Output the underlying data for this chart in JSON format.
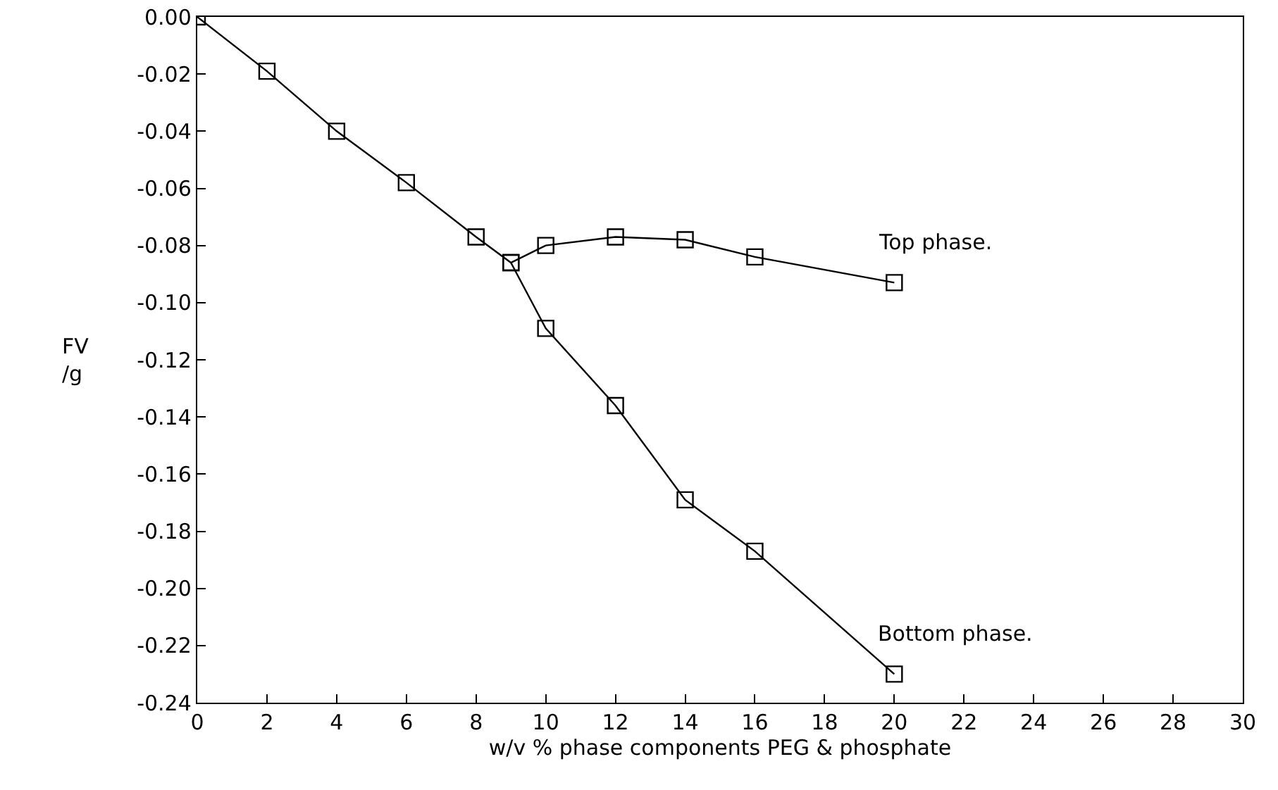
{
  "chart_data": {
    "type": "line",
    "xlabel": "w/v % phase components PEG & phosphate",
    "ylabel": "FV\n/g",
    "xlim": [
      0,
      30
    ],
    "xticks": [
      0,
      2,
      4,
      6,
      8,
      10,
      12,
      14,
      16,
      18,
      20,
      22,
      24,
      26,
      28,
      30
    ],
    "ylim": [
      -0.24,
      0
    ],
    "yticks": [
      {
        "value": -0.24,
        "label": "-0.24"
      },
      {
        "value": -0.22,
        "label": "-0.22"
      },
      {
        "value": -0.2,
        "label": "-0.20"
      },
      {
        "value": -0.18,
        "label": "-0.18"
      },
      {
        "value": -0.16,
        "label": "-0.16"
      },
      {
        "value": -0.14,
        "label": "-0.14"
      },
      {
        "value": -0.12,
        "label": "-0.12"
      },
      {
        "value": -0.1,
        "label": "-0.10"
      },
      {
        "value": -0.08,
        "label": "-0.08"
      },
      {
        "value": -0.06,
        "label": "-0.06"
      },
      {
        "value": -0.04,
        "label": "-0.04"
      },
      {
        "value": -0.02,
        "label": "-0.02"
      },
      {
        "value": 0,
        "label": "0.00"
      }
    ],
    "series": [
      {
        "name": "Top phase.",
        "color": "#000000",
        "x": [
          0,
          2,
          4,
          6,
          8,
          9,
          10,
          12,
          14,
          16,
          20
        ],
        "values": [
          0,
          -0.019,
          -0.04,
          -0.058,
          -0.077,
          -0.086,
          -0.08,
          -0.077,
          -0.078,
          -0.084,
          -0.093
        ]
      },
      {
        "name": "Bottom phase.",
        "color": "#000000",
        "x": [
          9,
          10,
          12,
          14,
          16,
          20
        ],
        "values": [
          -0.086,
          -0.109,
          -0.136,
          -0.169,
          -0.187,
          -0.23
        ]
      }
    ],
    "marker": "square",
    "line_style": "solid",
    "grid": false,
    "legend": false
  }
}
